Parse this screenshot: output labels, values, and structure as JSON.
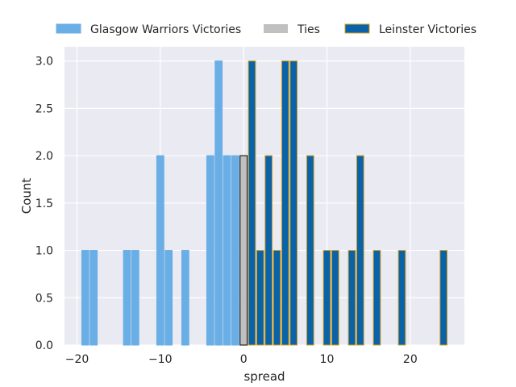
{
  "chart_data": {
    "type": "bar",
    "xlabel": "spread",
    "ylabel": "Count",
    "xlim": [
      -21.5,
      26.5
    ],
    "ylim": [
      0,
      3.15
    ],
    "xticks": [
      -20,
      -10,
      0,
      10,
      20
    ],
    "xtick_labels": [
      "−20",
      "−10",
      "0",
      "10",
      "20"
    ],
    "yticks": [
      0,
      0.5,
      1,
      1.5,
      2,
      2.5,
      3
    ],
    "ytick_labels": [
      "0.0",
      "0.5",
      "1.0",
      "1.5",
      "2.0",
      "2.5",
      "3.0"
    ],
    "grid": true,
    "legend_position": "top, above plot, horizontal",
    "series": [
      {
        "name": "Glasgow Warriors Victories",
        "color": "#6aaee6",
        "edge_color": "#6aaee6",
        "x": [
          -19,
          -18,
          -14,
          -13,
          -10,
          -9,
          -7,
          -4,
          -3,
          -2,
          -1
        ],
        "values": [
          1,
          1,
          1,
          1,
          2,
          1,
          1,
          2,
          3,
          2,
          2
        ]
      },
      {
        "name": "Ties",
        "color": "#c0c0c0",
        "edge_color": "#000000",
        "x": [
          0
        ],
        "values": [
          2
        ]
      },
      {
        "name": "Leinster Victories",
        "color": "#0a62a8",
        "edge_color": "#d9a21b",
        "x": [
          1,
          2,
          3,
          4,
          5,
          6,
          8,
          10,
          11,
          13,
          14,
          16,
          19,
          24
        ],
        "values": [
          3,
          1,
          2,
          1,
          3,
          3,
          2,
          1,
          1,
          1,
          2,
          1,
          1,
          1
        ]
      }
    ]
  }
}
